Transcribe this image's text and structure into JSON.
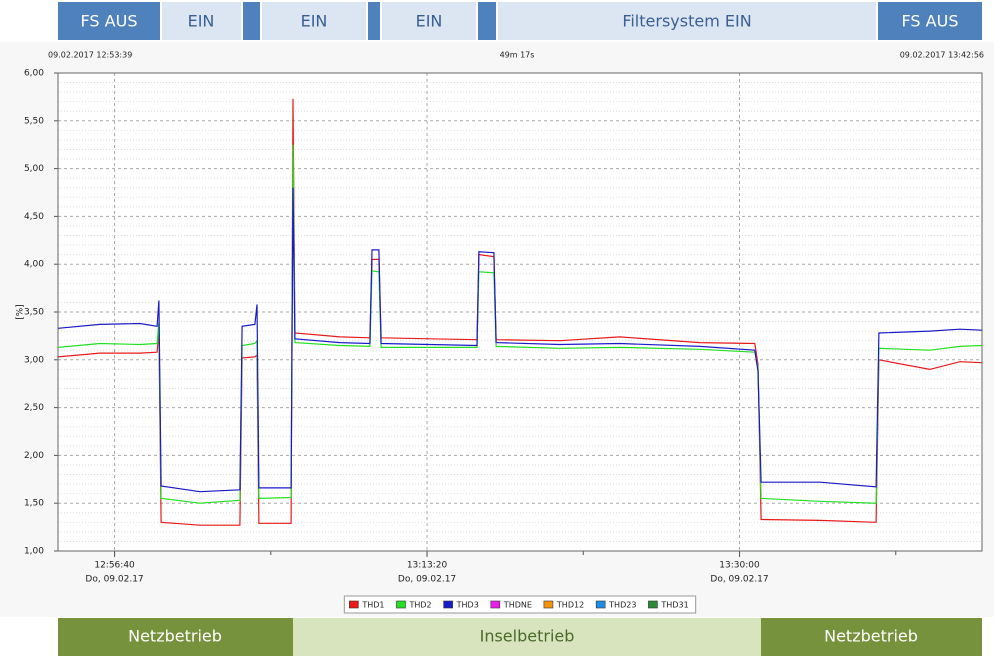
{
  "top_bar": [
    "FS AUS",
    "EIN",
    "EIN",
    "EIN",
    "Filtersystem EIN",
    "FS AUS"
  ],
  "bottom_bar": [
    "Netzbetrieb",
    "Inselbetrieb",
    "Netzbetrieb"
  ],
  "chart_data": {
    "type": "line",
    "duration": "49m 17s",
    "y_label": "[%]",
    "xlim": [
      "09.02.2017 12:53:39",
      "09.02.2017 13:42:56"
    ],
    "xticks": [
      {
        "time": "12:56:40",
        "date": "Do, 09.02.17"
      },
      {
        "time": "13:13:20",
        "date": "Do, 09.02.17"
      },
      {
        "time": "13:30:00",
        "date": "Do, 09.02.17"
      }
    ],
    "ylim": [
      1,
      6
    ],
    "yticks": [
      {
        "value": 1,
        "label": "1,00"
      },
      {
        "value": 1.5,
        "label": "1,50"
      },
      {
        "value": 2,
        "label": "2,00"
      },
      {
        "value": 2.5,
        "label": "2,50"
      },
      {
        "value": 3,
        "label": "3,00"
      },
      {
        "value": 3.5,
        "label": "3,50"
      },
      {
        "value": 4,
        "label": "4,00"
      },
      {
        "value": 4.5,
        "label": "4,50"
      },
      {
        "value": 5,
        "label": "5,00"
      },
      {
        "value": 5.5,
        "label": "5,50"
      },
      {
        "value": 6,
        "label": "6,00"
      }
    ],
    "grid": true,
    "legend": "bottom",
    "x": [
      "12:53:39",
      "12:55:53",
      "12:58:01",
      "12:58:56",
      "12:59:02",
      "12:59:09",
      "13:01:13",
      "13:03:21",
      "13:03:28",
      "13:04:09",
      "13:04:16",
      "13:04:22",
      "13:06:05",
      "13:06:11",
      "13:06:17",
      "13:08:41",
      "13:10:17",
      "13:10:24",
      "13:10:46",
      "13:10:53",
      "13:13:29",
      "13:16:00",
      "13:16:06",
      "13:16:54",
      "13:17:01",
      "13:20:25",
      "13:23:37",
      "13:27:53",
      "13:30:49",
      "13:30:59",
      "13:31:09",
      "13:34:17",
      "13:37:17",
      "13:37:26",
      "13:40:09",
      "13:41:45",
      "13:42:56"
    ],
    "series": [
      {
        "name": "THD1",
        "color": "#e8191b",
        "values": [
          3.03,
          3.07,
          3.07,
          3.08,
          3.3,
          1.3,
          1.27,
          1.27,
          3.02,
          3.03,
          3.05,
          1.29,
          1.29,
          5.73,
          3.28,
          3.24,
          3.23,
          4.05,
          4.05,
          3.23,
          3.22,
          3.21,
          4.1,
          4.08,
          3.21,
          3.2,
          3.24,
          3.18,
          3.17,
          2.95,
          1.33,
          1.32,
          1.3,
          3.0,
          2.9,
          2.98,
          2.97
        ]
      },
      {
        "name": "THD2",
        "color": "#22e022",
        "values": [
          3.13,
          3.17,
          3.16,
          3.17,
          3.4,
          1.55,
          1.5,
          1.53,
          3.15,
          3.17,
          3.2,
          1.55,
          1.56,
          5.25,
          3.18,
          3.15,
          3.14,
          3.93,
          3.92,
          3.13,
          3.13,
          3.13,
          3.92,
          3.91,
          3.14,
          3.12,
          3.13,
          3.11,
          3.08,
          2.92,
          1.55,
          1.52,
          1.5,
          3.12,
          3.1,
          3.14,
          3.15
        ]
      },
      {
        "name": "THD3",
        "color": "#1a1ac8",
        "values": [
          3.33,
          3.37,
          3.38,
          3.35,
          3.62,
          1.68,
          1.62,
          1.64,
          3.35,
          3.37,
          3.58,
          1.66,
          1.66,
          4.8,
          3.22,
          3.18,
          3.17,
          4.15,
          4.15,
          3.17,
          3.16,
          3.15,
          4.13,
          4.12,
          3.18,
          3.16,
          3.17,
          3.14,
          3.1,
          2.88,
          1.72,
          1.72,
          1.67,
          3.28,
          3.3,
          3.32,
          3.31
        ]
      },
      {
        "name": "THDNE",
        "color": "#e81ee8",
        "values": [
          null,
          null,
          null,
          null,
          null,
          null,
          null,
          null,
          null,
          null,
          null,
          null,
          null,
          null,
          null,
          null,
          null,
          null,
          null,
          null,
          null,
          null,
          null,
          null,
          null,
          null,
          null,
          null,
          null,
          null,
          null,
          null,
          null,
          null,
          null,
          null,
          null
        ]
      },
      {
        "name": "THD12",
        "color": "#f39410",
        "values": [
          null,
          null,
          null,
          null,
          null,
          null,
          null,
          null,
          null,
          null,
          null,
          null,
          null,
          null,
          null,
          null,
          null,
          null,
          null,
          null,
          null,
          null,
          null,
          null,
          null,
          null,
          null,
          null,
          null,
          null,
          null,
          null,
          null,
          null,
          null,
          null,
          null
        ]
      },
      {
        "name": "THD23",
        "color": "#1e8ce8",
        "values": [
          null,
          null,
          null,
          null,
          null,
          null,
          null,
          null,
          null,
          null,
          null,
          null,
          null,
          null,
          null,
          null,
          null,
          null,
          null,
          null,
          null,
          null,
          null,
          null,
          null,
          null,
          null,
          null,
          null,
          null,
          null,
          null,
          null,
          null,
          null,
          null,
          null
        ]
      },
      {
        "name": "THD31",
        "color": "#2a8a3a",
        "values": [
          null,
          null,
          null,
          null,
          null,
          null,
          null,
          null,
          null,
          null,
          null,
          null,
          null,
          null,
          null,
          null,
          null,
          null,
          null,
          null,
          null,
          null,
          null,
          null,
          null,
          null,
          null,
          null,
          null,
          null,
          null,
          null,
          null,
          null,
          null,
          null,
          null
        ]
      }
    ]
  }
}
